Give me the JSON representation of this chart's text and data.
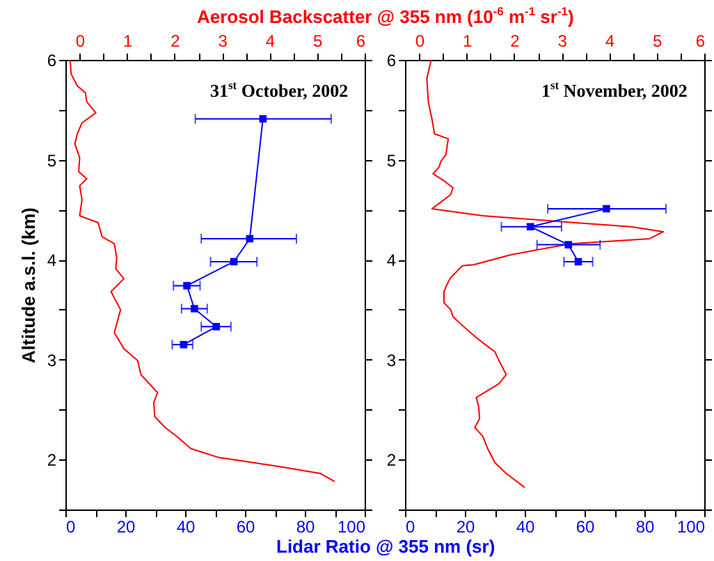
{
  "chart_data": [
    {
      "type": "line",
      "x2label": "Aerosol Backscatter @ 355 nm (10$^{-6}$ m$^{-1}$ sr$^{-1}$)",
      "xlabel": "Lidar Ratio @ 355 nm (sr)",
      "ylabel": "Altitude a.s.l. (km)",
      "annotations": [
        "31$^{st}$ October, 2002"
      ],
      "xlim": [
        0,
        100
      ],
      "xticks": [
        0,
        {
          "value": 10,
          "label": null
        },
        20,
        {
          "value": 30,
          "label": null
        },
        40,
        {
          "value": 50,
          "label": null
        },
        60,
        {
          "value": 70,
          "label": null
        },
        80,
        {
          "value": 90,
          "label": null
        },
        100
      ],
      "x2lim": [
        -0.3,
        6
      ],
      "x2ticks": [
        0,
        {
          "value": 0.5,
          "label": null
        },
        1,
        {
          "value": 1.5,
          "label": null
        },
        2,
        {
          "value": 2.5,
          "label": null
        },
        3,
        {
          "value": 3.5,
          "label": null
        },
        4,
        {
          "value": 4.5,
          "label": null
        },
        5,
        {
          "value": 5.5,
          "label": null
        },
        6
      ],
      "ylim": [
        1.5,
        6
      ],
      "yticks": [
        {
          "value": 1.5,
          "label": null
        },
        2,
        {
          "value": 2.5,
          "label": null
        },
        3,
        {
          "value": 3.5,
          "label": null
        },
        4,
        {
          "value": 4.5,
          "label": null
        },
        5,
        {
          "value": 5.5,
          "label": null
        },
        6
      ],
      "series": [
        {
          "axis": "x2",
          "color": "#ff0000",
          "marker": "none",
          "x": [
            -0.2,
            -0.18,
            -0.05,
            0.12,
            0.15,
            0.34,
            0.05,
            -0.05,
            -0.1,
            0,
            -0.02,
            0.15,
            0,
            0.05,
            0,
            0.39,
            0.47,
            0.73,
            0.78,
            0.76,
            0.93,
            0.66,
            0.86,
            0.73,
            0.93,
            1.22,
            1.29,
            1.64,
            1.56,
            1.58,
            1.8,
            2.05,
            2.34,
            2.93,
            4.2,
            5.07,
            5.37
          ],
          "values": [
            6.0,
            5.86,
            5.74,
            5.67,
            5.58,
            5.47,
            5.37,
            5.26,
            5.16,
            5.02,
            4.88,
            4.81,
            4.74,
            4.6,
            4.44,
            4.37,
            4.23,
            4.16,
            4.02,
            3.91,
            3.81,
            3.68,
            3.5,
            3.27,
            3.11,
            2.99,
            2.85,
            2.67,
            2.57,
            2.43,
            2.32,
            2.23,
            2.11,
            2.02,
            1.93,
            1.86,
            1.78
          ]
        },
        {
          "color": "#0000ff",
          "marker": "square",
          "x": [
            66,
            61.6,
            56.3,
            40.6,
            43.1,
            50.4,
            39.5
          ],
          "values": [
            5.41,
            4.21,
            3.98,
            3.74,
            3.51,
            3.33,
            3.15
          ],
          "xerrors": [
            [
              43.4,
              88.8
            ],
            [
              45.4,
              77.2
            ],
            [
              48.5,
              64
            ],
            [
              36.1,
              45
            ],
            [
              38.8,
              47.4
            ],
            [
              45.4,
              55.3
            ],
            [
              35.7,
              42.5
            ]
          ]
        }
      ]
    },
    {
      "type": "line",
      "annotations": [
        "1$^{st}$ November, 2002"
      ],
      "xlim": [
        0,
        100
      ],
      "xticks": [
        0,
        {
          "value": 10,
          "label": null
        },
        20,
        {
          "value": 30,
          "label": null
        },
        40,
        {
          "value": 50,
          "label": null
        },
        60,
        {
          "value": 70,
          "label": null
        },
        80,
        {
          "value": 90,
          "label": null
        },
        100
      ],
      "x2lim": [
        -0.3,
        6
      ],
      "x2ticks": [
        0,
        {
          "value": 0.5,
          "label": null
        },
        1,
        {
          "value": 1.5,
          "label": null
        },
        2,
        {
          "value": 2.5,
          "label": null
        },
        3,
        {
          "value": 3.5,
          "label": null
        },
        4,
        {
          "value": 4.5,
          "label": null
        },
        5,
        {
          "value": 5.5,
          "label": null
        },
        6
      ],
      "ylim": [
        1.5,
        6
      ],
      "yticks": [
        {
          "value": 1.5,
          "label": null
        },
        2,
        {
          "value": 2.5,
          "label": null
        },
        3,
        {
          "value": 3.5,
          "label": null
        },
        4,
        {
          "value": 4.5,
          "label": null
        },
        5,
        {
          "value": 5.5,
          "label": null
        },
        6
      ],
      "series": [
        {
          "axis": "x2",
          "color": "#ff0000",
          "marker": "none",
          "x": [
            0.25,
            0.16,
            0.19,
            0.27,
            0.32,
            0.61,
            0.56,
            0.45,
            0.42,
            0.29,
            0.52,
            0.71,
            0.66,
            0.27,
            1.34,
            3.29,
            4.46,
            5.14,
            4.85,
            3.19,
            1.93,
            1.15,
            0.91,
            0.66,
            0.58,
            0.52,
            0.52,
            0.66,
            0.71,
            0.91,
            1.2,
            1.39,
            1.59,
            1.68,
            1.83,
            1.68,
            1.44,
            1.2,
            1.25,
            1.27,
            1.17,
            1.34,
            1.44,
            1.59,
            1.83,
            2.22
          ],
          "values": [
            6.0,
            5.81,
            5.58,
            5.4,
            5.26,
            5.21,
            5.05,
            4.98,
            4.93,
            4.86,
            4.79,
            4.72,
            4.65,
            4.51,
            4.44,
            4.37,
            4.33,
            4.28,
            4.21,
            4.16,
            4.05,
            3.95,
            3.94,
            3.82,
            3.75,
            3.68,
            3.57,
            3.5,
            3.43,
            3.34,
            3.22,
            3.15,
            3.08,
            2.99,
            2.85,
            2.76,
            2.69,
            2.62,
            2.53,
            2.41,
            2.32,
            2.23,
            2.11,
            1.97,
            1.86,
            1.72
          ]
        },
        {
          "color": "#0000ff",
          "marker": "square",
          "x": [
            67.3,
            41.9,
            54.6,
            57.9
          ],
          "values": [
            4.51,
            4.33,
            4.15,
            3.98
          ],
          "xerrors": [
            [
              47.7,
              87.2
            ],
            [
              32.2,
              52.3
            ],
            [
              44.1,
              65.2
            ],
            [
              53.1,
              62.7
            ]
          ]
        }
      ]
    }
  ]
}
